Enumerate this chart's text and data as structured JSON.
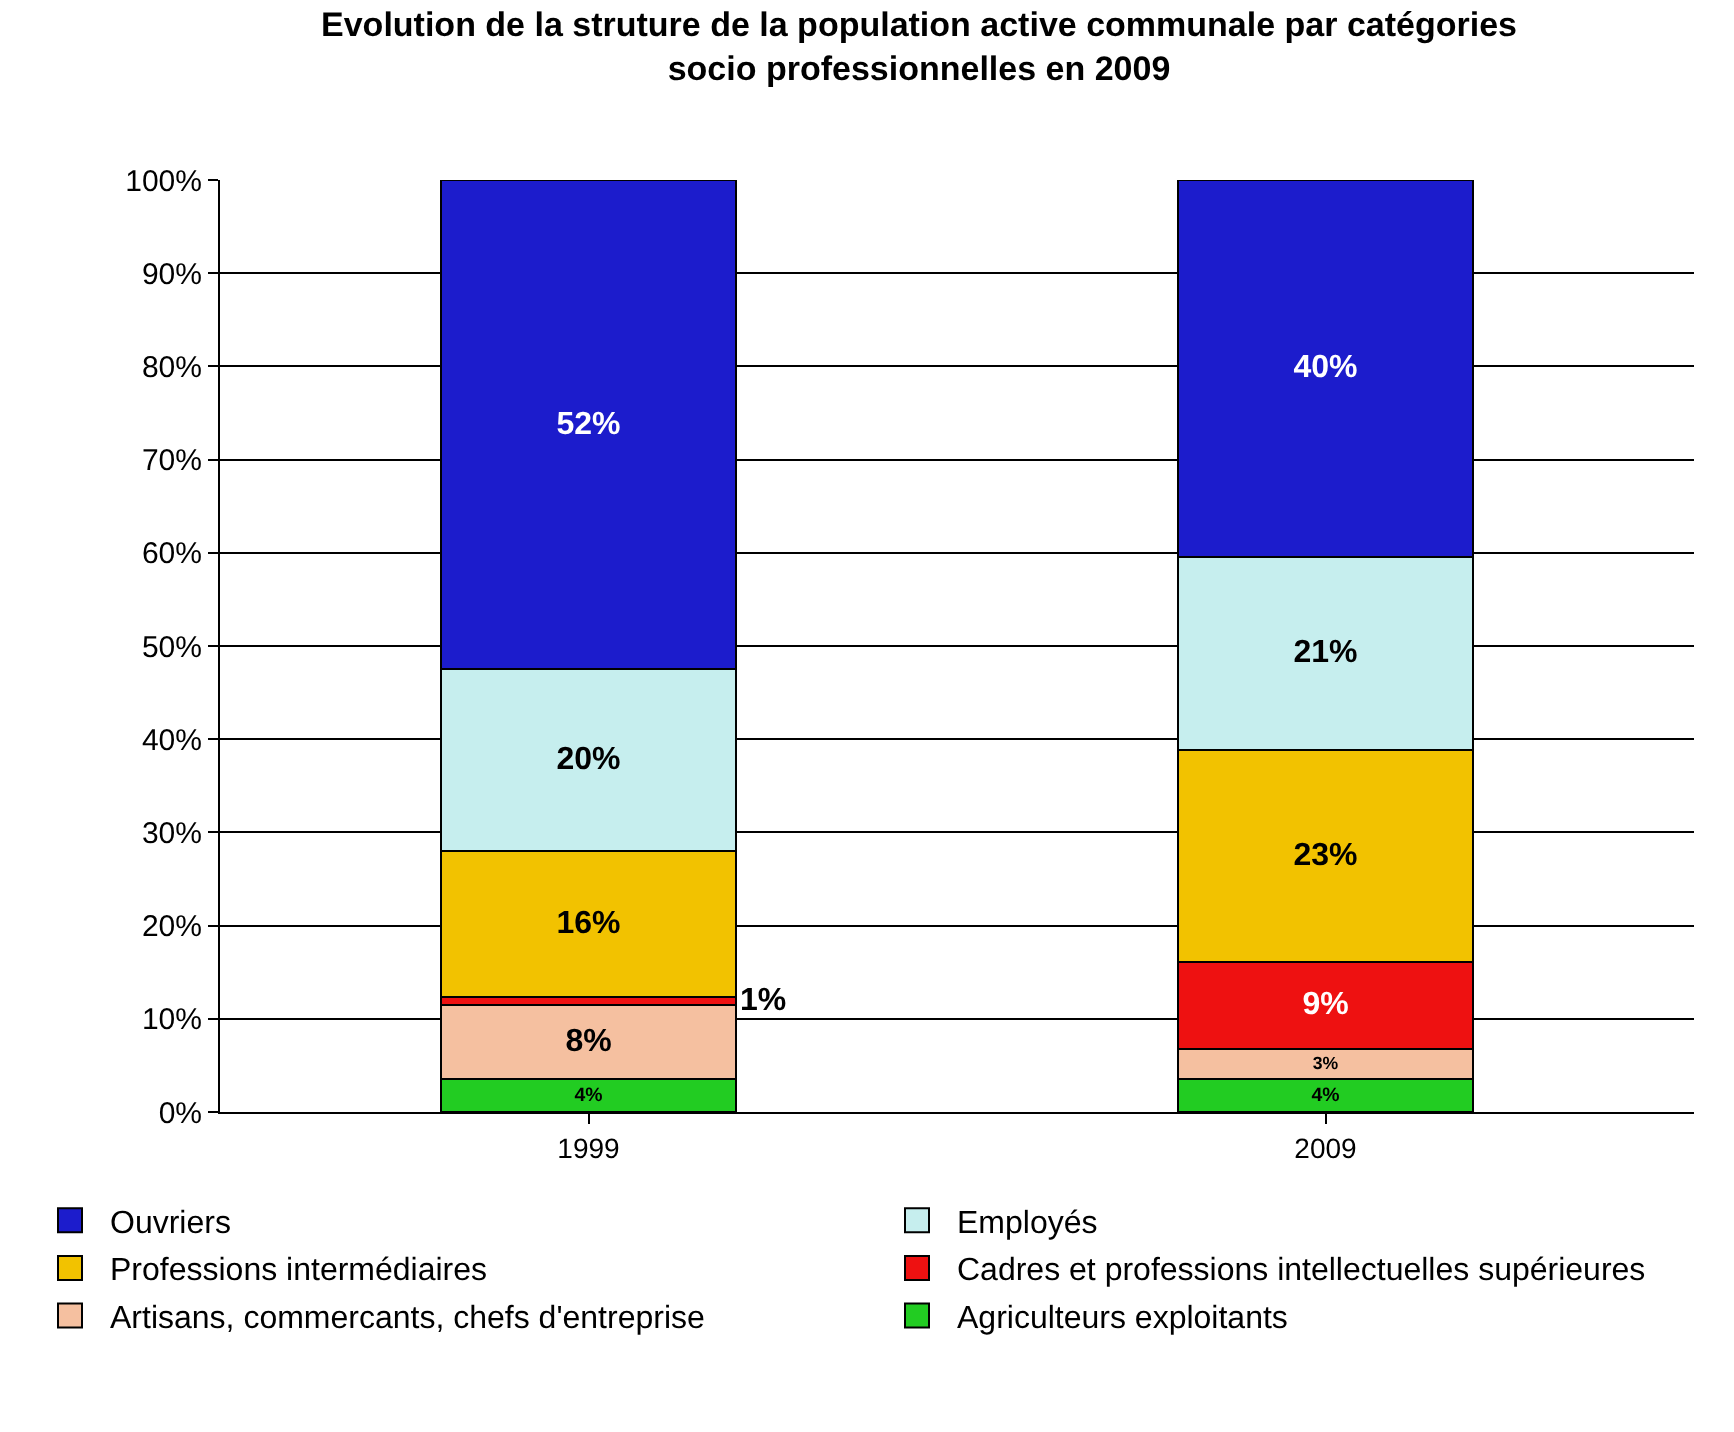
{
  "chart_data": {
    "type": "bar",
    "title": "Evolution de la struture de la population active communale par catégories\nsocio professionnelles en 2009",
    "categories": [
      "1999",
      "2009"
    ],
    "stacked": true,
    "series": [
      {
        "name": "Agriculteurs exploitants",
        "color": "#22cc22",
        "values": [
          3.5,
          3.5
        ],
        "value_labels": [
          "4%",
          "4%"
        ]
      },
      {
        "name": "Artisans, commercants, chefs d'entreprise",
        "color": "#f5c0a0",
        "values": [
          8,
          3.3
        ],
        "value_labels": [
          "8%",
          "3%"
        ]
      },
      {
        "name": "Cadres et professions intellectuelles supérieures",
        "color": "#ee1111",
        "values": [
          0.8,
          9.3
        ],
        "value_labels": [
          "1%",
          "9%"
        ]
      },
      {
        "name": "Professions intermédiaires",
        "color": "#f2c200",
        "values": [
          15.7,
          22.7
        ],
        "value_labels": [
          "16%",
          "23%"
        ]
      },
      {
        "name": "Employés",
        "color": "#c6eeee",
        "values": [
          19.5,
          20.8
        ],
        "value_labels": [
          "20%",
          "21%"
        ]
      },
      {
        "name": "Ouvriers",
        "color": "#1c1ccc",
        "values": [
          52.5,
          40.4
        ],
        "value_labels": [
          "52%",
          "40%"
        ]
      }
    ],
    "ylim": [
      0,
      100
    ],
    "yticks": [
      {
        "value": 0,
        "label": "0%"
      },
      {
        "value": 10,
        "label": "10%"
      },
      {
        "value": 20,
        "label": "20%"
      },
      {
        "value": 30,
        "label": "30%"
      },
      {
        "value": 40,
        "label": "40%"
      },
      {
        "value": 50,
        "label": "50%"
      },
      {
        "value": 60,
        "label": "60%"
      },
      {
        "value": 70,
        "label": "70%"
      },
      {
        "value": 80,
        "label": "80%"
      },
      {
        "value": 90,
        "label": "90%"
      },
      {
        "value": 100,
        "label": "100%"
      }
    ],
    "grid": "y",
    "legend": "bottom"
  }
}
